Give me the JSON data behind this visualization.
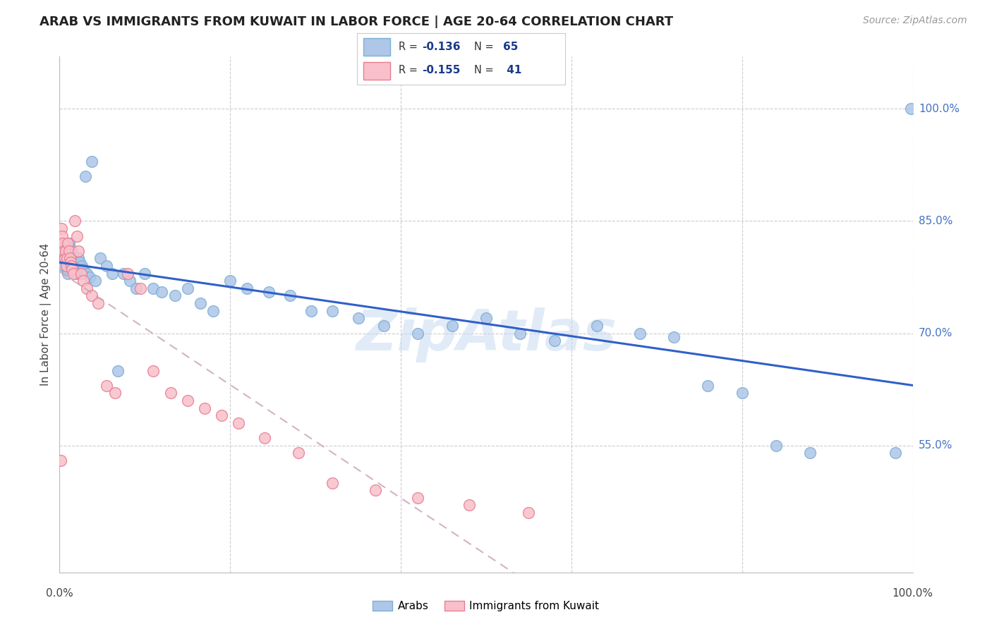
{
  "title": "ARAB VS IMMIGRANTS FROM KUWAIT IN LABOR FORCE | AGE 20-64 CORRELATION CHART",
  "source": "Source: ZipAtlas.com",
  "ylabel": "In Labor Force | Age 20-64",
  "xlim": [
    0.0,
    1.0
  ],
  "ylim": [
    0.38,
    1.07
  ],
  "yticks": [
    0.55,
    0.7,
    0.85,
    1.0
  ],
  "ytick_labels": [
    "55.0%",
    "70.0%",
    "85.0%",
    "100.0%"
  ],
  "xtick_labels": [
    "0.0%",
    "100.0%"
  ],
  "background_color": "#ffffff",
  "grid_color": "#cccccc",
  "arab_color": "#aec6e8",
  "arab_edge_color": "#7bafd4",
  "immigrant_color": "#f9c0cb",
  "immigrant_edge_color": "#e87d90",
  "arab_line_color": "#3060c8",
  "immigrant_line_color": "#d0a0b0",
  "arab_x": [
    0.002,
    0.003,
    0.004,
    0.005,
    0.006,
    0.007,
    0.008,
    0.009,
    0.01,
    0.011,
    0.012,
    0.013,
    0.014,
    0.015,
    0.016,
    0.017,
    0.018,
    0.019,
    0.02,
    0.022,
    0.024,
    0.026,
    0.028,
    0.03,
    0.032,
    0.035,
    0.038,
    0.042,
    0.048,
    0.055,
    0.062,
    0.068,
    0.075,
    0.082,
    0.09,
    0.1,
    0.11,
    0.12,
    0.135,
    0.15,
    0.165,
    0.18,
    0.2,
    0.22,
    0.245,
    0.27,
    0.295,
    0.32,
    0.35,
    0.38,
    0.42,
    0.46,
    0.5,
    0.54,
    0.58,
    0.63,
    0.68,
    0.72,
    0.76,
    0.8,
    0.84,
    0.88,
    0.98,
    0.998
  ],
  "arab_y": [
    0.8,
    0.81,
    0.82,
    0.79,
    0.8,
    0.81,
    0.79,
    0.785,
    0.78,
    0.82,
    0.815,
    0.81,
    0.8,
    0.81,
    0.8,
    0.795,
    0.79,
    0.785,
    0.78,
    0.8,
    0.795,
    0.79,
    0.785,
    0.91,
    0.78,
    0.775,
    0.93,
    0.77,
    0.8,
    0.79,
    0.78,
    0.65,
    0.78,
    0.77,
    0.76,
    0.78,
    0.76,
    0.755,
    0.75,
    0.76,
    0.74,
    0.73,
    0.77,
    0.76,
    0.755,
    0.75,
    0.73,
    0.73,
    0.72,
    0.71,
    0.7,
    0.71,
    0.72,
    0.7,
    0.69,
    0.71,
    0.7,
    0.695,
    0.63,
    0.62,
    0.55,
    0.54,
    0.54,
    1.0
  ],
  "immigrant_x": [
    0.002,
    0.003,
    0.004,
    0.005,
    0.006,
    0.007,
    0.008,
    0.009,
    0.01,
    0.011,
    0.012,
    0.013,
    0.014,
    0.015,
    0.016,
    0.018,
    0.02,
    0.022,
    0.025,
    0.028,
    0.032,
    0.038,
    0.045,
    0.055,
    0.065,
    0.08,
    0.095,
    0.11,
    0.13,
    0.15,
    0.17,
    0.19,
    0.21,
    0.24,
    0.28,
    0.32,
    0.37,
    0.42,
    0.48,
    0.55,
    0.001
  ],
  "immigrant_y": [
    0.84,
    0.83,
    0.82,
    0.81,
    0.8,
    0.81,
    0.79,
    0.8,
    0.82,
    0.81,
    0.8,
    0.795,
    0.79,
    0.785,
    0.78,
    0.85,
    0.83,
    0.81,
    0.78,
    0.77,
    0.76,
    0.75,
    0.74,
    0.63,
    0.62,
    0.78,
    0.76,
    0.65,
    0.62,
    0.61,
    0.6,
    0.59,
    0.58,
    0.56,
    0.54,
    0.5,
    0.49,
    0.48,
    0.47,
    0.46,
    0.53
  ],
  "watermark_text": "ZipAtlas",
  "watermark_color": "#c5d8f0",
  "watermark_alpha": 0.5
}
